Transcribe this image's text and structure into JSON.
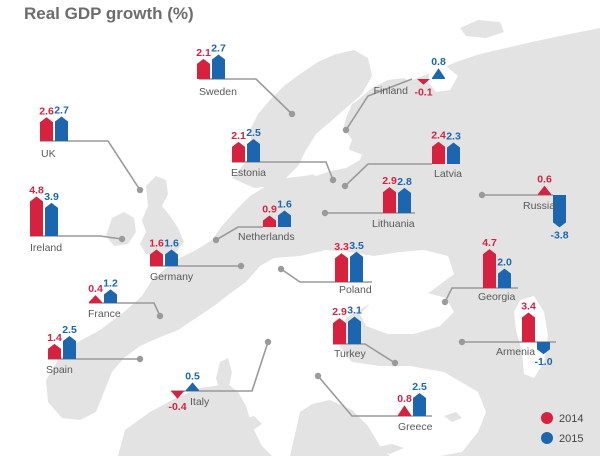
{
  "colors": {
    "y2014": "#d7223f",
    "y2015": "#1b66ae",
    "sea": "#ffffff",
    "land": "#e3e3e3",
    "leader": "#9a9a9a",
    "text": "#595959"
  },
  "chart_data": {
    "type": "bar",
    "title": "Real GDP growth (%)",
    "series": [
      {
        "name": "2014",
        "key": "v2014"
      },
      {
        "name": "2015",
        "key": "v2015"
      }
    ],
    "countries": [
      {
        "name": "Sweden",
        "v2014": 2.1,
        "v2015": 2.7
      },
      {
        "name": "Finland",
        "v2014": -0.1,
        "v2015": 0.8
      },
      {
        "name": "UK",
        "v2014": 2.6,
        "v2015": 2.7
      },
      {
        "name": "Estonia",
        "v2014": 2.1,
        "v2015": 2.5
      },
      {
        "name": "Latvia",
        "v2014": 2.4,
        "v2015": 2.3
      },
      {
        "name": "Ireland",
        "v2014": 4.8,
        "v2015": 3.9
      },
      {
        "name": "Lithuania",
        "v2014": 2.9,
        "v2015": 2.8
      },
      {
        "name": "Russia",
        "v2014": 0.6,
        "v2015": -3.8
      },
      {
        "name": "Netherlands",
        "v2014": 0.9,
        "v2015": 1.6
      },
      {
        "name": "Germany",
        "v2014": 1.6,
        "v2015": 1.6
      },
      {
        "name": "Poland",
        "v2014": 3.3,
        "v2015": 3.5
      },
      {
        "name": "Georgia",
        "v2014": 4.7,
        "v2015": 2.0
      },
      {
        "name": "France",
        "v2014": 0.4,
        "v2015": 1.2
      },
      {
        "name": "Turkey",
        "v2014": 2.9,
        "v2015": 3.1
      },
      {
        "name": "Armenia",
        "v2014": 3.4,
        "v2015": -1.0
      },
      {
        "name": "Spain",
        "v2014": 1.4,
        "v2015": 2.5
      },
      {
        "name": "Italy",
        "v2014": -0.4,
        "v2015": 0.5
      },
      {
        "name": "Greece",
        "v2014": 0.8,
        "v2015": 2.5
      }
    ]
  }
}
